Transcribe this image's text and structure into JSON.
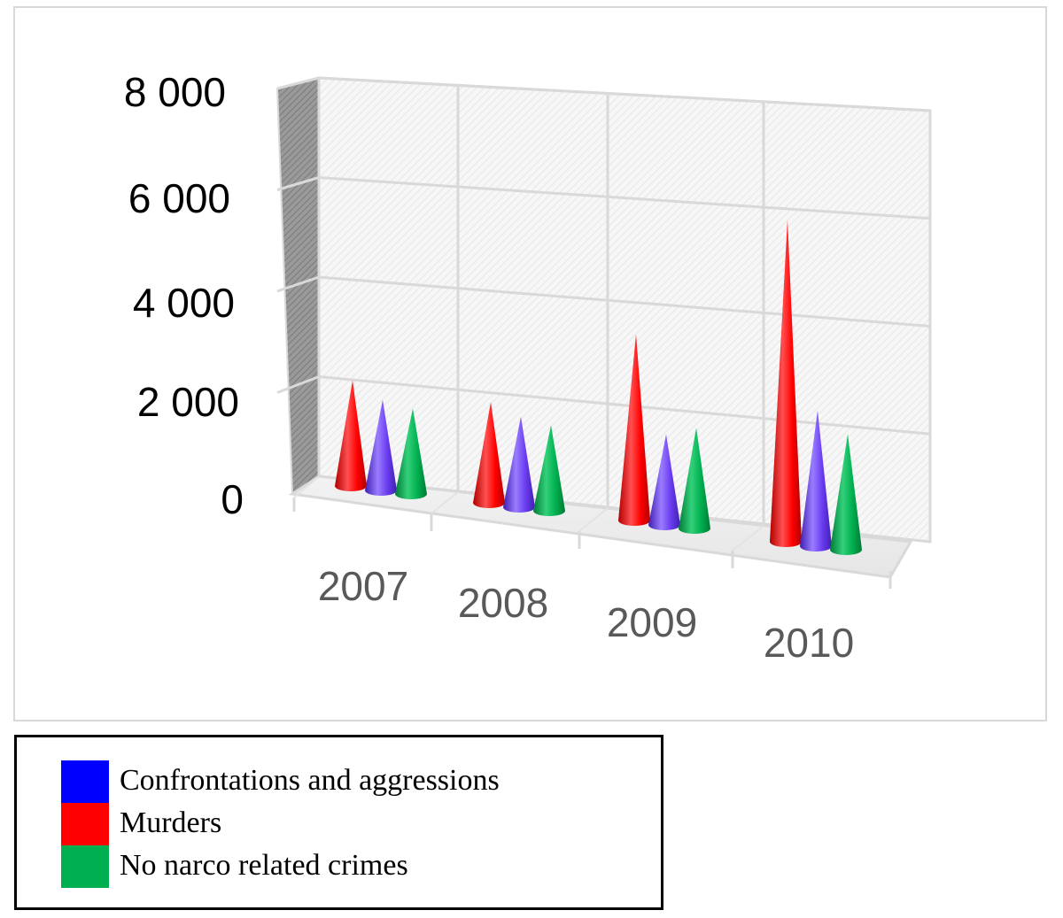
{
  "chart_data": {
    "type": "bar",
    "style": "3d-cone",
    "categories": [
      "2007",
      "2008",
      "2009",
      "2010"
    ],
    "series": [
      {
        "name": "Murders",
        "color": "#ff0000",
        "values": [
          2100,
          2000,
          3700,
          6400
        ]
      },
      {
        "name": "Confrontations and aggressions",
        "color": "#6a3cf0",
        "values": [
          1800,
          1800,
          1800,
          2700
        ]
      },
      {
        "name": "No narco related crimes",
        "color": "#00b050",
        "values": [
          1700,
          1700,
          2000,
          2300
        ]
      }
    ],
    "ylim": [
      0,
      8000
    ],
    "yticks": [
      "8 000",
      "6 000",
      "4 000",
      "2 000",
      "0"
    ],
    "grid": true,
    "legend_position": "bottom-left"
  },
  "legend": {
    "items": [
      {
        "label": "Confrontations and aggressions",
        "color": "#0000ff"
      },
      {
        "label": "Murders",
        "color": "#ff0000"
      },
      {
        "label": "No narco related crimes",
        "color": "#00b050"
      }
    ]
  }
}
